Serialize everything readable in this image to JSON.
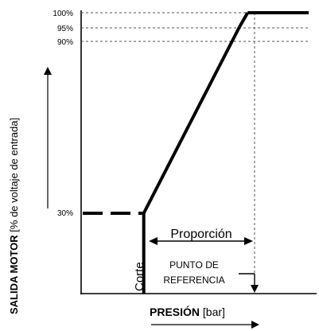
{
  "chart_data": {
    "type": "line",
    "y_ticks": [
      "100%",
      "95%",
      "90%",
      "30%"
    ],
    "y_values": [
      100,
      95,
      90,
      30
    ],
    "ylabel_bold": "SALIDA MOTOR",
    "ylabel_rest": " [% de voltaje de entrada]",
    "xlabel_bold": "PRESIÓN",
    "xlabel_rest": " [bar]",
    "annotations": {
      "proportion": "Proporción",
      "cutoff": "Corte",
      "setpoint_line1": "PUNTO DE",
      "setpoint_line2": "REFERENCIA"
    },
    "series": [
      {
        "points": [
          {
            "x": 0.0,
            "y": 30,
            "style": "dashed"
          },
          {
            "x": 0.37,
            "y": 30,
            "style": "dashed"
          },
          {
            "x": 0.37,
            "y": 30,
            "style": "solid"
          },
          {
            "x": 0.95,
            "y": 95,
            "style": "solid"
          },
          {
            "x": 1.0,
            "y": 100,
            "style": "solid"
          },
          {
            "x": 1.37,
            "y": 100,
            "style": "solid"
          }
        ]
      }
    ],
    "xlim": [
      0,
      1.37
    ],
    "ylim": [
      0,
      100
    ],
    "colors": {
      "line": "#000000",
      "guide": "#555555"
    }
  }
}
